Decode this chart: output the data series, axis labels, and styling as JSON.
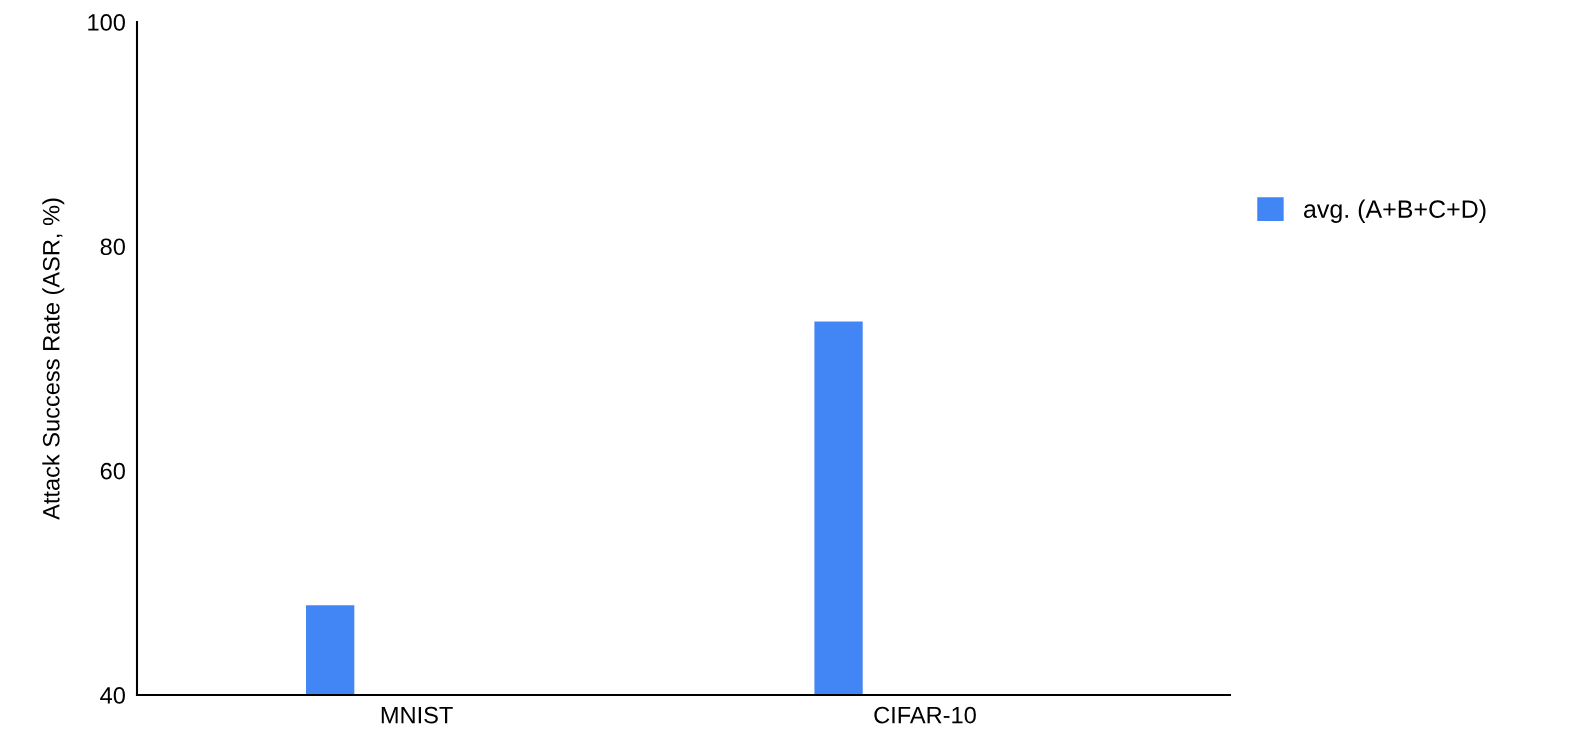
{
  "chart_data": {
    "type": "bar",
    "categories": [
      "MNIST",
      "CIFAR-10"
    ],
    "ylabel": "Attack Success Rate (ASR, %)",
    "series": [
      {
        "name": "avg. (A+B+C+D)",
        "color": "#4285f4",
        "values": [
          48.0,
          73.3
        ]
      }
    ],
    "ylim": [
      40,
      100
    ],
    "yticks": [
      40,
      60,
      80,
      100
    ],
    "grid": false,
    "legend": "right"
  }
}
